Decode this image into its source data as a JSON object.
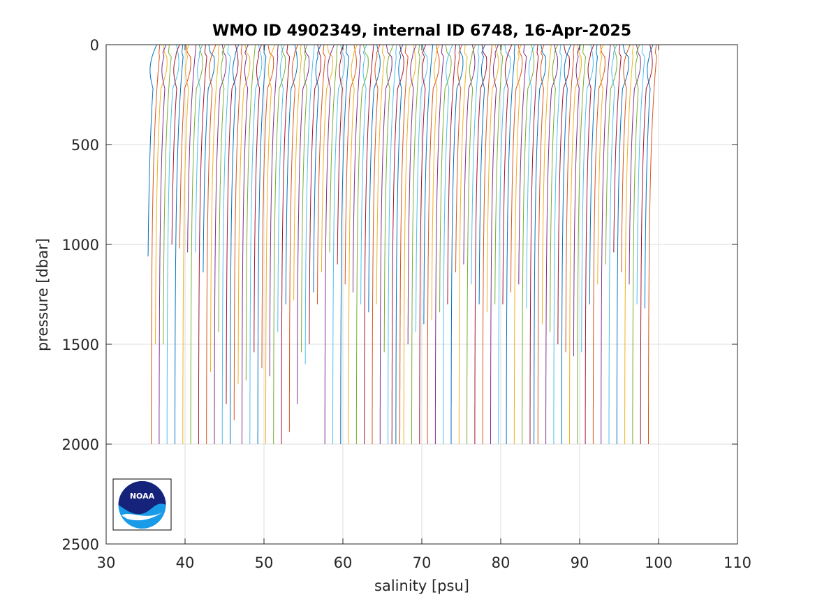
{
  "chart_data": {
    "type": "line",
    "title": "WMO ID 4902349, internal ID 6748, 16-Apr-2025",
    "xlabel": "salinity [psu]",
    "ylabel": "pressure [dbar]",
    "xlim": [
      30,
      110
    ],
    "ylim": [
      0,
      2500
    ],
    "y_reversed": true,
    "grid": true,
    "x_ticks": [
      "30",
      "40",
      "50",
      "60",
      "70",
      "80",
      "90",
      "100",
      "110"
    ],
    "y_ticks": [
      "0",
      "500",
      "1000",
      "1500",
      "2000",
      "2500"
    ],
    "description_of_series": "Waterfall of salinity profiles, each successive profile offset by 0.5 psu",
    "offset_per_profile": 0.5,
    "colors": [
      "#0072bd",
      "#d95319",
      "#edb120",
      "#7e2f8e",
      "#77ac30",
      "#4dbeee",
      "#a2142f"
    ],
    "profiles": {
      "first_surface_salinity": 36.2,
      "count": 128,
      "max_pressure_default": 2000,
      "short_profile_depths": [
        [
          1060,
          1510,
          1505
        ],
        [
          1000,
          1030,
          1040,
          1050,
          1150,
          1650,
          1450,
          1800,
          1880,
          2000
        ],
        [
          1700,
          1680,
          1550,
          1620,
          1660,
          1450,
          1300,
          1280,
          1550,
          1500,
          1300,
          2000
        ],
        [
          1950,
          1800,
          1600,
          1250,
          1150,
          1050,
          1100,
          1200,
          1250,
          1300,
          1350,
          1300,
          1550
        ],
        [
          1500,
          1450,
          1400,
          1380,
          1350,
          1300,
          1150,
          1100,
          1200,
          1300,
          1350,
          1310,
          1300,
          1250,
          1200,
          1320
        ],
        [
          1400,
          1450,
          1500,
          1550,
          1560,
          1540,
          1300,
          1200,
          1100,
          1050,
          1150,
          1200,
          1300,
          1320,
          1350,
          1380,
          1450,
          1510
        ]
      ]
    },
    "logo": "NOAA"
  }
}
